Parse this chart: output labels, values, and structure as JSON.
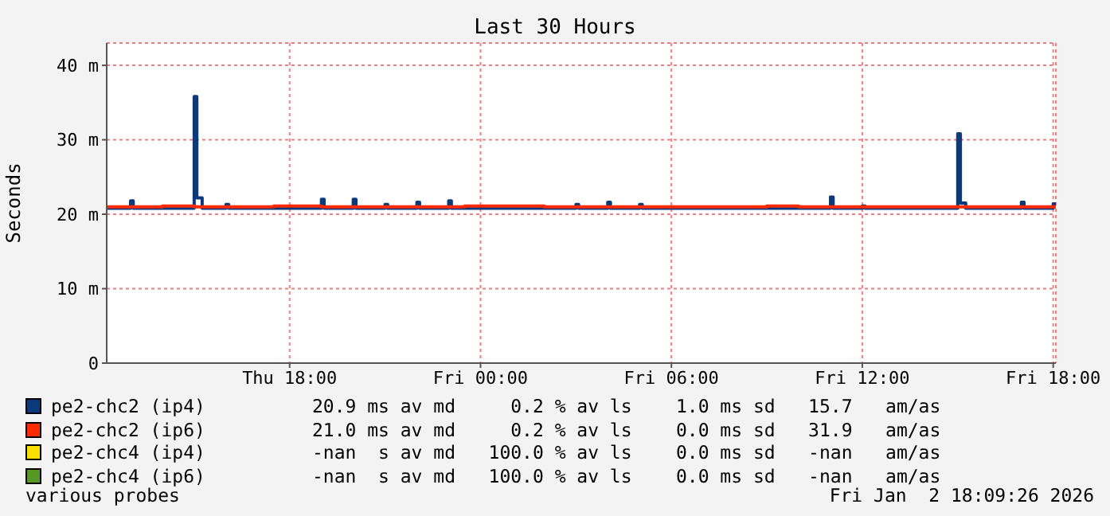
{
  "chart_data": {
    "type": "step",
    "title": "Last 30 Hours",
    "ylabel": "Seconds",
    "xlim": [
      "2026-01-01T12:15",
      "2026-01-02T18:05"
    ],
    "xticks": [
      {
        "value": "2026-01-01T18:00",
        "label": "Thu 18:00"
      },
      {
        "value": "2026-01-02T00:00",
        "label": "Fri 00:00"
      },
      {
        "value": "2026-01-02T06:00",
        "label": "Fri 06:00"
      },
      {
        "value": "2026-01-02T12:00",
        "label": "Fri 12:00"
      },
      {
        "value": "2026-01-02T18:00",
        "label": "Fri 18:00"
      }
    ],
    "ylim": [
      0,
      43
    ],
    "yticks": [
      0,
      {
        "value": 10,
        "label": "10 m"
      },
      {
        "value": 20,
        "label": "20 m"
      },
      {
        "value": 30,
        "label": "30 m"
      },
      {
        "value": 40,
        "label": "40 m"
      }
    ],
    "grid": true,
    "legend": "bottom",
    "series": [
      {
        "name": "pe2-chc2 (ip4)",
        "color": "#0b3a7c",
        "x": [
          "2026-01-01T12:15",
          "2026-01-01T13:00",
          "2026-01-01T13:05",
          "2026-01-01T15:00",
          "2026-01-01T15:05",
          "2026-01-01T15:15",
          "2026-01-01T16:00",
          "2026-01-01T16:05",
          "2026-01-01T19:00",
          "2026-01-01T19:05",
          "2026-01-01T20:00",
          "2026-01-01T20:05",
          "2026-01-01T21:00",
          "2026-01-01T21:05",
          "2026-01-01T22:00",
          "2026-01-01T22:05",
          "2026-01-01T23:00",
          "2026-01-01T23:05",
          "2026-01-02T03:00",
          "2026-01-02T03:05",
          "2026-01-02T04:00",
          "2026-01-02T04:05",
          "2026-01-02T05:00",
          "2026-01-02T05:05",
          "2026-01-02T11:00",
          "2026-01-02T11:05",
          "2026-01-02T12:00",
          "2026-01-02T12:05",
          "2026-01-02T15:00",
          "2026-01-02T15:05",
          "2026-01-02T15:15",
          "2026-01-02T17:00",
          "2026-01-02T17:05",
          "2026-01-02T18:00",
          "2026-01-02T18:05"
        ],
        "values": [
          20.8,
          21.8,
          20.8,
          35.8,
          22.2,
          20.8,
          21.3,
          20.8,
          22.0,
          20.8,
          22.0,
          20.8,
          21.3,
          20.8,
          21.6,
          20.8,
          21.8,
          20.8,
          21.3,
          20.8,
          21.6,
          20.8,
          21.3,
          20.8,
          22.3,
          20.8,
          21.1,
          20.8,
          30.8,
          21.5,
          20.8,
          21.6,
          20.8,
          21.4,
          20.8
        ]
      },
      {
        "name": "pe2-chc2 (ip6)",
        "color": "#ff2a00",
        "x": [
          "2026-01-01T12:15",
          "2026-01-01T14:00",
          "2026-01-01T15:00",
          "2026-01-01T17:30",
          "2026-01-01T19:00",
          "2026-01-01T23:30",
          "2026-01-02T02:00",
          "2026-01-02T09:00",
          "2026-01-02T10:00",
          "2026-01-02T18:05"
        ],
        "values": [
          21.0,
          21.1,
          21.0,
          21.1,
          21.0,
          21.1,
          21.0,
          21.1,
          21.0,
          21.0
        ]
      },
      {
        "name": "pe2-chc4 (ip4)",
        "color": "#ffdd00"
      },
      {
        "name": "pe2-chc4 (ip6)",
        "color": "#559922"
      }
    ],
    "annotations": [
      "20.9 ms av md     0.2 % av ls    1.0 ms sd   15.7   am/as",
      "21.0 ms av md     0.2 % av ls    0.0 ms sd   31.9   am/as",
      "-nan  s av md   100.0 % av ls    0.0 ms sd   -nan   am/as",
      "-nan  s av md   100.0 % av ls    0.0 ms sd   -nan   am/as",
      "various probes",
      "Fri Jan  2 18:09:26 2026"
    ]
  }
}
